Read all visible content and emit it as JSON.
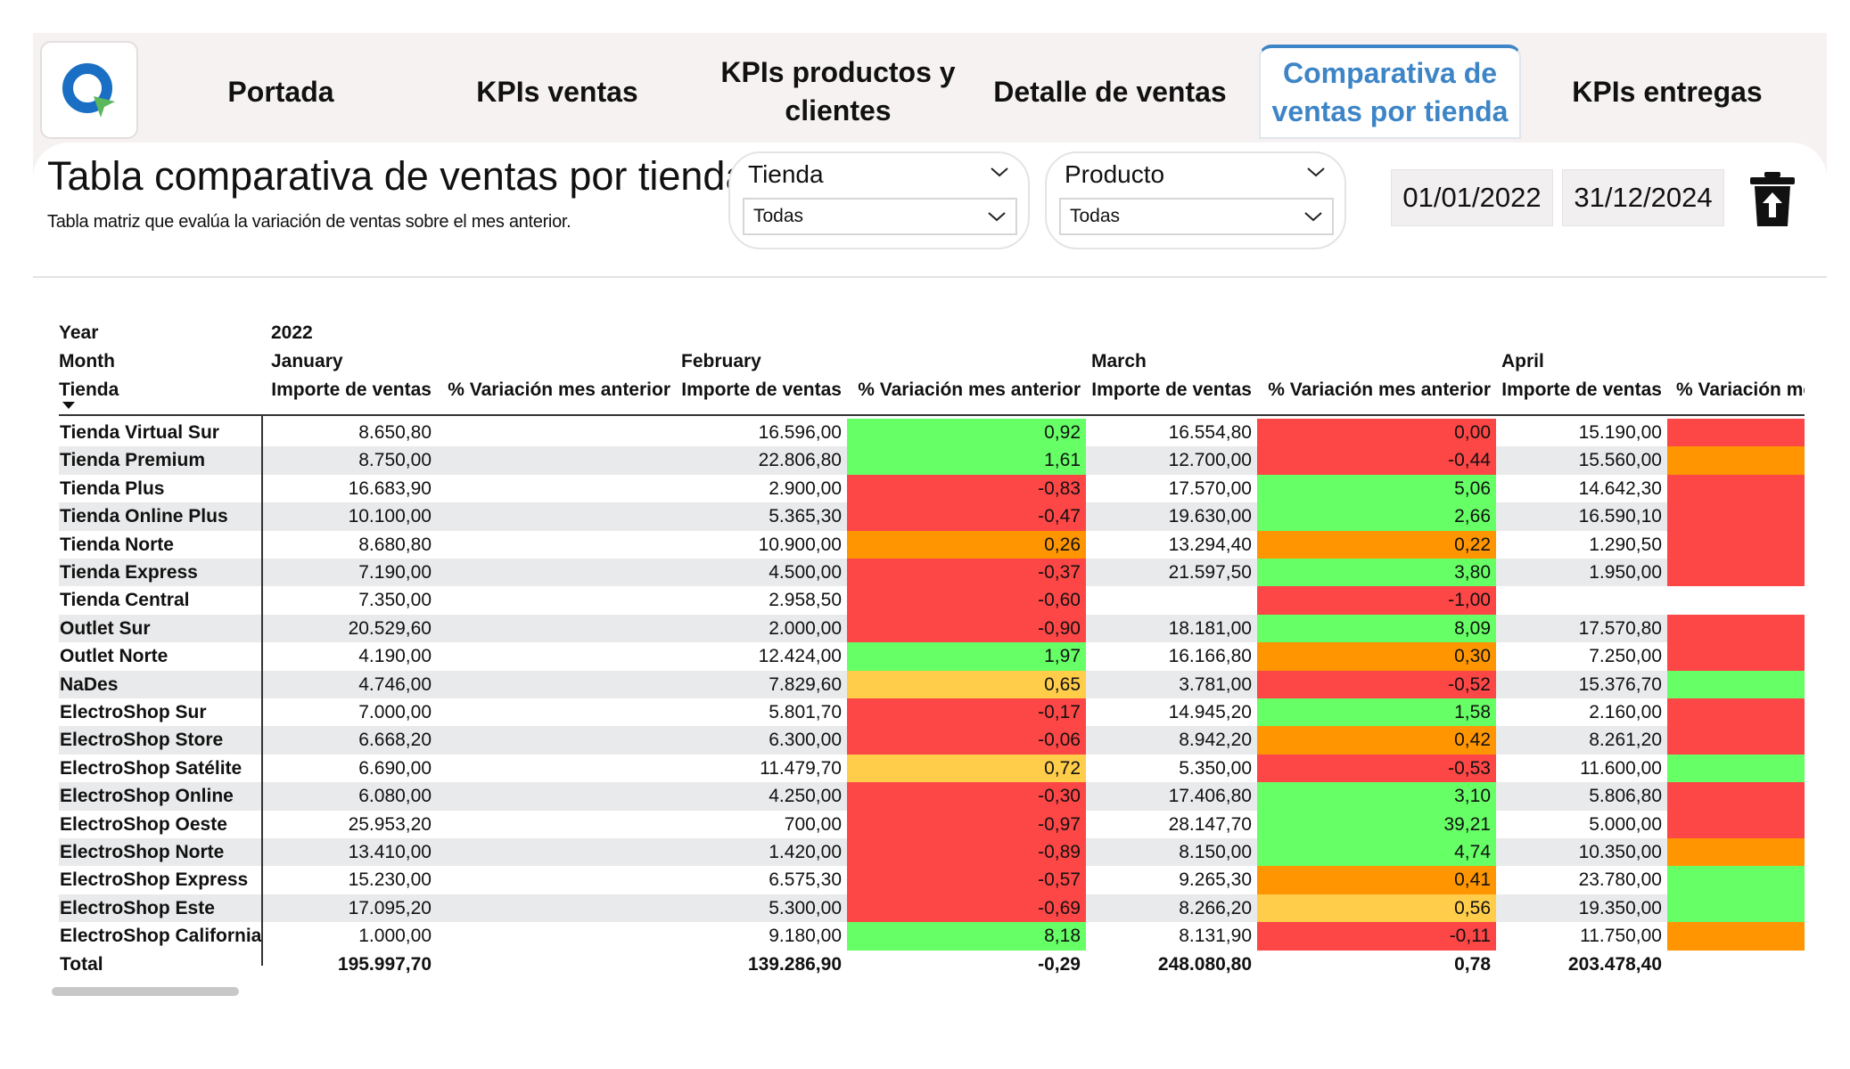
{
  "nav": {
    "tabs": [
      {
        "label": "Portada",
        "active": false
      },
      {
        "label": "KPIs ventas",
        "active": false
      },
      {
        "label": "KPIs productos y clientes",
        "active": false
      },
      {
        "label": "Detalle de ventas",
        "active": false
      },
      {
        "label": "Comparativa de ventas por tienda",
        "active": true
      },
      {
        "label": "KPIs entregas",
        "active": false
      }
    ],
    "active_color": "#3d85c6"
  },
  "header": {
    "title": "Tabla comparativa de ventas por tienda",
    "subtitle": "Tabla matriz que evalúa la variación de ventas sobre el mes anterior."
  },
  "filters": {
    "tienda": {
      "label": "Tienda",
      "value": "Todas"
    },
    "producto": {
      "label": "Producto",
      "value": "Todas"
    },
    "date_from": "01/01/2022",
    "date_to": "31/12/2024"
  },
  "matrix": {
    "row_header_labels": {
      "year": "Year",
      "month": "Month",
      "tienda": "Tienda"
    },
    "year": "2022",
    "months": [
      "January",
      "February",
      "March",
      "April"
    ],
    "measure_importe": "Importe de ventas",
    "measure_variacion": "% Variación mes anterior",
    "colors": {
      "green": "#66ff66",
      "red": "#fd4646",
      "orange": "#ff9500",
      "yellow": "#ffcd4a",
      "alt_row": "#e9eaeb"
    },
    "rows": [
      {
        "tienda": "Tienda Virtual Sur",
        "jan": "8.650,80",
        "feb": "16.596,00",
        "feb_var": "0,92",
        "feb_color": "green",
        "mar": "16.554,80",
        "mar_var": "0,00",
        "mar_color": "red",
        "apr": "15.190,00",
        "apr_color": "red"
      },
      {
        "tienda": "Tienda Premium",
        "jan": "8.750,00",
        "feb": "22.806,80",
        "feb_var": "1,61",
        "feb_color": "green",
        "mar": "12.700,00",
        "mar_var": "-0,44",
        "mar_color": "red",
        "apr": "15.560,00",
        "apr_color": "orange"
      },
      {
        "tienda": "Tienda Plus",
        "jan": "16.683,90",
        "feb": "2.900,00",
        "feb_var": "-0,83",
        "feb_color": "red",
        "mar": "17.570,00",
        "mar_var": "5,06",
        "mar_color": "green",
        "apr": "14.642,30",
        "apr_color": "red"
      },
      {
        "tienda": "Tienda Online Plus",
        "jan": "10.100,00",
        "feb": "5.365,30",
        "feb_var": "-0,47",
        "feb_color": "red",
        "mar": "19.630,00",
        "mar_var": "2,66",
        "mar_color": "green",
        "apr": "16.590,10",
        "apr_color": "red"
      },
      {
        "tienda": "Tienda Norte",
        "jan": "8.680,80",
        "feb": "10.900,00",
        "feb_var": "0,26",
        "feb_color": "orange",
        "mar": "13.294,40",
        "mar_var": "0,22",
        "mar_color": "orange",
        "apr": "1.290,50",
        "apr_color": "red"
      },
      {
        "tienda": "Tienda Express",
        "jan": "7.190,00",
        "feb": "4.500,00",
        "feb_var": "-0,37",
        "feb_color": "red",
        "mar": "21.597,50",
        "mar_var": "3,80",
        "mar_color": "green",
        "apr": "1.950,00",
        "apr_color": "red"
      },
      {
        "tienda": "Tienda Central",
        "jan": "7.350,00",
        "feb": "2.958,50",
        "feb_var": "-0,60",
        "feb_color": "red",
        "mar": "",
        "mar_var": "-1,00",
        "mar_color": "red",
        "apr": "",
        "apr_color": "none"
      },
      {
        "tienda": "Outlet Sur",
        "jan": "20.529,60",
        "feb": "2.000,00",
        "feb_var": "-0,90",
        "feb_color": "red",
        "mar": "18.181,00",
        "mar_var": "8,09",
        "mar_color": "green",
        "apr": "17.570,80",
        "apr_color": "red"
      },
      {
        "tienda": "Outlet Norte",
        "jan": "4.190,00",
        "feb": "12.424,00",
        "feb_var": "1,97",
        "feb_color": "green",
        "mar": "16.166,80",
        "mar_var": "0,30",
        "mar_color": "orange",
        "apr": "7.250,00",
        "apr_color": "red"
      },
      {
        "tienda": "NaDes",
        "jan": "4.746,00",
        "feb": "7.829,60",
        "feb_var": "0,65",
        "feb_color": "yellow",
        "mar": "3.781,00",
        "mar_var": "-0,52",
        "mar_color": "red",
        "apr": "15.376,70",
        "apr_color": "green"
      },
      {
        "tienda": "ElectroShop Sur",
        "jan": "7.000,00",
        "feb": "5.801,70",
        "feb_var": "-0,17",
        "feb_color": "red",
        "mar": "14.945,20",
        "mar_var": "1,58",
        "mar_color": "green",
        "apr": "2.160,00",
        "apr_color": "red"
      },
      {
        "tienda": "ElectroShop Store",
        "jan": "6.668,20",
        "feb": "6.300,00",
        "feb_var": "-0,06",
        "feb_color": "red",
        "mar": "8.942,20",
        "mar_var": "0,42",
        "mar_color": "orange",
        "apr": "8.261,20",
        "apr_color": "red"
      },
      {
        "tienda": "ElectroShop Satélite",
        "jan": "6.690,00",
        "feb": "11.479,70",
        "feb_var": "0,72",
        "feb_color": "yellow",
        "mar": "5.350,00",
        "mar_var": "-0,53",
        "mar_color": "red",
        "apr": "11.600,00",
        "apr_color": "green"
      },
      {
        "tienda": "ElectroShop Online",
        "jan": "6.080,00",
        "feb": "4.250,00",
        "feb_var": "-0,30",
        "feb_color": "red",
        "mar": "17.406,80",
        "mar_var": "3,10",
        "mar_color": "green",
        "apr": "5.806,80",
        "apr_color": "red"
      },
      {
        "tienda": "ElectroShop Oeste",
        "jan": "25.953,20",
        "feb": "700,00",
        "feb_var": "-0,97",
        "feb_color": "red",
        "mar": "28.147,70",
        "mar_var": "39,21",
        "mar_color": "green",
        "apr": "5.000,00",
        "apr_color": "red"
      },
      {
        "tienda": "ElectroShop Norte",
        "jan": "13.410,00",
        "feb": "1.420,00",
        "feb_var": "-0,89",
        "feb_color": "red",
        "mar": "8.150,00",
        "mar_var": "4,74",
        "mar_color": "green",
        "apr": "10.350,00",
        "apr_color": "orange"
      },
      {
        "tienda": "ElectroShop Express",
        "jan": "15.230,00",
        "feb": "6.575,30",
        "feb_var": "-0,57",
        "feb_color": "red",
        "mar": "9.265,30",
        "mar_var": "0,41",
        "mar_color": "orange",
        "apr": "23.780,00",
        "apr_color": "green"
      },
      {
        "tienda": "ElectroShop Este",
        "jan": "17.095,20",
        "feb": "5.300,00",
        "feb_var": "-0,69",
        "feb_color": "red",
        "mar": "8.266,20",
        "mar_var": "0,56",
        "mar_color": "yellow",
        "apr": "19.350,00",
        "apr_color": "green"
      },
      {
        "tienda": "ElectroShop California",
        "jan": "1.000,00",
        "feb": "9.180,00",
        "feb_var": "8,18",
        "feb_color": "green",
        "mar": "8.131,90",
        "mar_var": "-0,11",
        "mar_color": "red",
        "apr": "11.750,00",
        "apr_color": "orange"
      }
    ],
    "total": {
      "label": "Total",
      "jan": "195.997,70",
      "feb": "139.286,90",
      "feb_var": "-0,29",
      "mar": "248.080,80",
      "mar_var": "0,78",
      "apr": "203.478,40"
    }
  }
}
